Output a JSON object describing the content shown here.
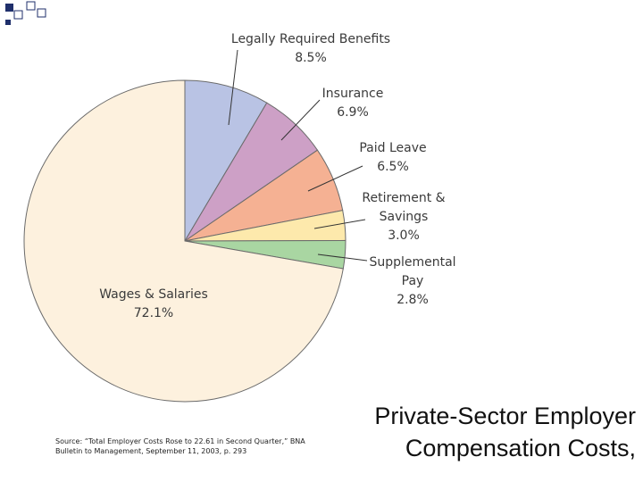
{
  "chart_data": {
    "type": "pie",
    "title": "Private-Sector Employer Compensation Costs,",
    "source": "Source: “Total Employer Costs Rose to 22.61 in Second Quarter,” BNA Bulletin to Management, September 11, 2003, p. 293",
    "categories": [
      "Legally Required Benefits",
      "Insurance",
      "Paid Leave",
      "Retirement & Savings",
      "Supplemental Pay",
      "Wages & Salaries"
    ],
    "values": [
      8.5,
      6.9,
      6.5,
      3.0,
      2.8,
      72.1
    ],
    "value_labels": [
      "8.5%",
      "6.9%",
      "6.5%",
      "3.0%",
      "2.8%",
      "72.1%"
    ],
    "colors": [
      "#b9c3e4",
      "#cda0c6",
      "#f5b193",
      "#fde9ac",
      "#a9d6a2",
      "#fdf1de"
    ]
  }
}
